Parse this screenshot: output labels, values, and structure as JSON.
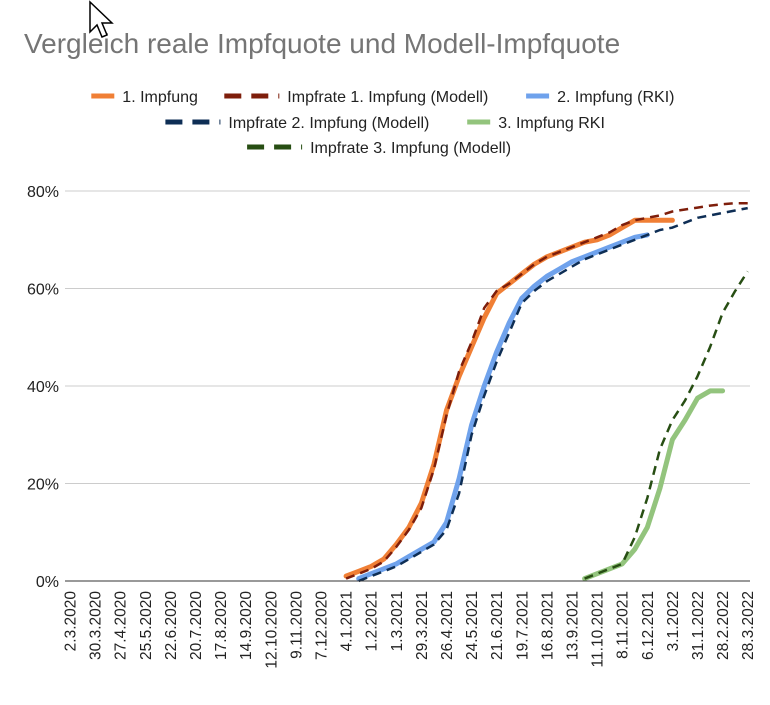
{
  "chart_data": {
    "type": "line",
    "title": "Vergleich reale Impfquote und Modell-Impfquote",
    "xlabel": "",
    "ylabel": "",
    "ylim": [
      0,
      80
    ],
    "y_ticks": [
      "0%",
      "20%",
      "40%",
      "60%",
      "80%"
    ],
    "y_tick_values": [
      0,
      20,
      40,
      60,
      80
    ],
    "grid": "horizontal",
    "legend_position": "top",
    "x_tick_labels": [
      "2.3.2020",
      "30.3.2020",
      "27.4.2020",
      "25.5.2020",
      "22.6.2020",
      "20.7.2020",
      "17.8.2020",
      "14.9.2020",
      "12.10.2020",
      "9.11.2020",
      "7.12.2020",
      "4.1.2021",
      "1.2.2021",
      "1.3.2021",
      "29.3.2021",
      "26.4.2021",
      "24.5.2021",
      "21.6.2021",
      "19.7.2021",
      "16.8.2021",
      "13.9.2021",
      "11.10.2021",
      "8.11.2021",
      "6.12.2021",
      "3.1.2022",
      "31.1.2022",
      "28.2.2022",
      "28.3.2022"
    ],
    "series": [
      {
        "name": "1. Impfung",
        "color": "#f07f35",
        "style": "solid",
        "x": [
          11,
          11.5,
          12,
          12.5,
          13,
          13.5,
          14,
          14.5,
          15,
          15.5,
          16,
          16.5,
          17,
          17.5,
          18,
          18.5,
          19,
          19.5,
          20,
          20.5,
          21,
          21.5,
          22,
          22.5,
          23,
          23.5,
          24
        ],
        "values": [
          1,
          2,
          3,
          4.5,
          7.5,
          11,
          16,
          24,
          35,
          42,
          48,
          54,
          59,
          61,
          63,
          65,
          66.5,
          67.5,
          68.5,
          69.5,
          70,
          71,
          72.5,
          74,
          74,
          74,
          74
        ]
      },
      {
        "name": "Impfrate 1. Impfung (Modell)",
        "color": "#7e1e0b",
        "style": "dashed",
        "x": [
          11,
          11.5,
          12,
          12.5,
          13,
          13.5,
          14,
          14.5,
          15,
          15.5,
          16,
          16.5,
          17,
          17.5,
          18,
          18.5,
          19,
          19.5,
          20,
          20.5,
          21,
          21.5,
          22,
          22.5,
          23,
          23.5,
          24,
          24.5,
          25,
          25.5,
          26,
          26.5,
          27
        ],
        "values": [
          0.5,
          1.5,
          2.5,
          4,
          7,
          10.5,
          15,
          23,
          34,
          43,
          49,
          56,
          59.5,
          61,
          63,
          65,
          66.5,
          67.5,
          68.5,
          69.5,
          70.5,
          71.5,
          73,
          74,
          74.5,
          75,
          75.8,
          76.2,
          76.6,
          77,
          77.3,
          77.5,
          77.5
        ]
      },
      {
        "name": "2. Impfung (RKI)",
        "color": "#6fa2ec",
        "style": "solid",
        "x": [
          11.5,
          12,
          12.5,
          13,
          13.5,
          14,
          14.5,
          15,
          15.5,
          16,
          16.5,
          17,
          17.5,
          18,
          18.5,
          19,
          19.5,
          20,
          20.5,
          21,
          21.5,
          22,
          22.5,
          23
        ],
        "values": [
          0.5,
          1.5,
          2.5,
          3.5,
          5,
          6.5,
          8,
          12,
          21,
          32,
          40,
          47,
          53,
          58,
          60.5,
          62.5,
          64,
          65.5,
          66.5,
          67.5,
          68.5,
          69.5,
          70.5,
          71
        ]
      },
      {
        "name": "Impfrate 2. Impfung (Modell)",
        "color": "#0e2e55",
        "style": "dashed",
        "x": [
          11.5,
          12,
          12.5,
          13,
          13.5,
          14,
          14.5,
          15,
          15.5,
          16,
          16.5,
          17,
          17.5,
          18,
          18.5,
          19,
          19.5,
          20,
          20.5,
          21,
          21.5,
          22,
          22.5,
          23,
          23.5,
          24,
          24.5,
          25,
          25.5,
          26,
          26.5,
          27
        ],
        "values": [
          0,
          1,
          2,
          3,
          4.5,
          6,
          7.5,
          10.5,
          18,
          30,
          38,
          45,
          51,
          57,
          59.5,
          61.5,
          63,
          64.5,
          66,
          67,
          68,
          69,
          70,
          71,
          72,
          72.5,
          73.5,
          74.5,
          75,
          75.5,
          76,
          76.5
        ]
      },
      {
        "name": "3. Impfung RKI",
        "color": "#93c47d",
        "style": "solid",
        "x": [
          20.5,
          21,
          21.5,
          22,
          22.5,
          23,
          23.5,
          24,
          24.5,
          25,
          25.5,
          26
        ],
        "values": [
          0.5,
          1.5,
          2.5,
          3.5,
          6.5,
          11,
          19,
          29,
          33,
          37.5,
          39,
          39
        ]
      },
      {
        "name": "Impfrate 3. Impfung (Modell)",
        "color": "#274e13",
        "style": "dashed",
        "x": [
          20.5,
          21,
          21.5,
          22,
          22.5,
          23,
          23.5,
          24,
          24.5,
          25,
          25.5,
          26,
          26.5,
          27
        ],
        "values": [
          0.5,
          1.5,
          2.5,
          3.5,
          9,
          17,
          27,
          33,
          37,
          42,
          48,
          55,
          59.5,
          63.5
        ]
      }
    ],
    "legend_rows": [
      [
        0,
        1,
        2
      ],
      [
        3,
        4
      ],
      [
        5
      ]
    ]
  }
}
